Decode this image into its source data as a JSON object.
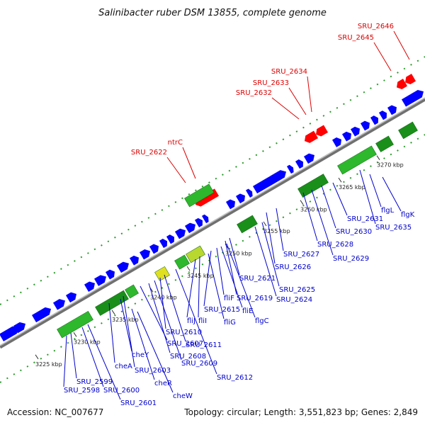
{
  "title": "Salinibacter ruber DSM 13855, complete genome",
  "accession": "Accession: NC_007677",
  "summary": "Topology: circular; Length: 3,551,823 bp; Genes: 2,849",
  "colors": {
    "forward_gene": "#0000ff",
    "reverse_gene": "#ff0000",
    "feature_green": "#2db82d",
    "feature_dark_green": "#1a8f1a",
    "backbone": "#808080",
    "label_red": "#dd0000",
    "label_blue": "#0000cc",
    "dots": "#2a9a2a"
  },
  "ticks": [
    "3225 kbp",
    "3230 kbp",
    "3235 kbp",
    "3240 kbp",
    "3245 kbp",
    "3250 kbp",
    "3255 kbp",
    "3260 kbp",
    "3265 kbp",
    "3270 kbp"
  ],
  "red_labels": [
    "SRU_2646",
    "SRU_2645",
    "SRU_2634",
    "SRU_2633",
    "SRU_2632",
    "ntrC",
    "SRU_2622"
  ],
  "blue_labels": [
    "flgK",
    "flgL",
    "SRU_2635",
    "SRU_2631",
    "SRU_2630",
    "SRU_2629",
    "SRU_2628",
    "SRU_2627",
    "SRU_2626",
    "SRU_2625",
    "SRU_2624",
    "SRU_2621",
    "SRU_2619",
    "flgC",
    "fliE",
    "fliF",
    "SRU_2615",
    "fliG",
    "fliI",
    "fliJ",
    "SRU_2612",
    "SRU_2611",
    "SRU_2610",
    "SRU_2609",
    "SRU_2608",
    "SRU_2607",
    "SRU_2603",
    "cheY",
    "cheA",
    "cheR",
    "cheW",
    "SRU_2601",
    "SRU_2600",
    "SRU_2599",
    "SRU_2598"
  ]
}
